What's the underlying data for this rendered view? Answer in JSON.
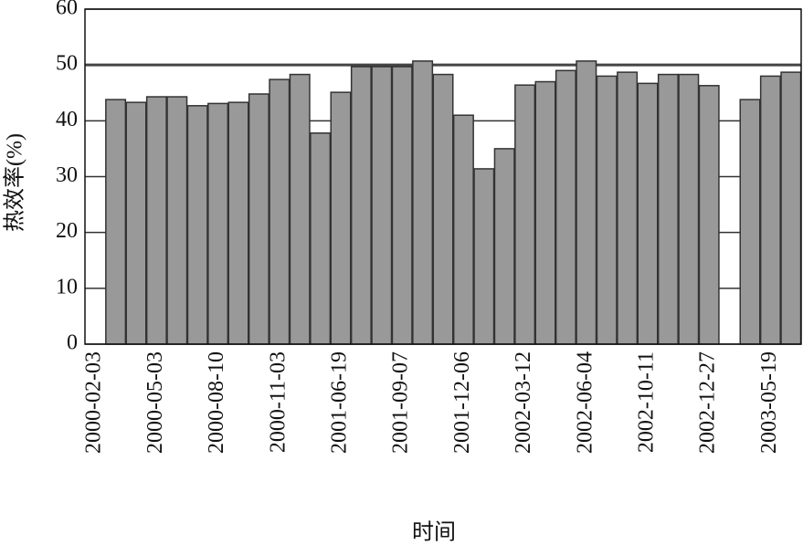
{
  "chart_data": {
    "type": "bar",
    "title": null,
    "xlabel": "时间",
    "ylabel": "热效率(%)",
    "categories": [
      "2000-02-03",
      null,
      null,
      "2000-05-03",
      null,
      null,
      "2000-08-10",
      null,
      null,
      "2000-11-03",
      null,
      null,
      "2001-06-19",
      null,
      null,
      "2001-09-07",
      null,
      null,
      "2001-12-06",
      null,
      null,
      "2002-03-12",
      null,
      null,
      "2002-06-04",
      null,
      null,
      "2002-10-11",
      null,
      null,
      "2002-12-27",
      null,
      null,
      "2003-05-19",
      null
    ],
    "values": [
      null,
      43.8,
      43.3,
      44.3,
      44.3,
      42.7,
      43.1,
      43.3,
      44.8,
      47.4,
      48.3,
      37.8,
      45.1,
      49.7,
      49.7,
      49.7,
      50.7,
      48.3,
      41.0,
      31.4,
      35.0,
      46.4,
      47.0,
      49.0,
      50.7,
      48.0,
      48.7,
      46.7,
      48.3,
      48.3,
      46.3,
      null,
      43.8,
      48.0,
      48.7
    ],
    "color": "#999999",
    "ylim": [
      0,
      60
    ],
    "yticks": [
      0,
      10,
      20,
      30,
      40,
      50,
      60
    ],
    "grid": true,
    "hline": 50
  }
}
